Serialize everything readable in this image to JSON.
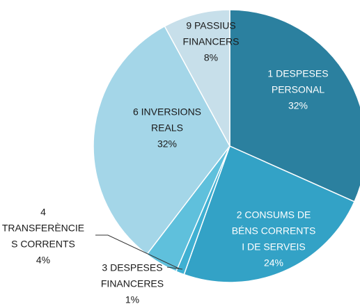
{
  "chart_data": {
    "type": "pie",
    "categories": [
      [
        "1  DESPESES",
        "PERSONAL"
      ],
      [
        "2  CONSUMS  DE",
        "BÉNS  CORRENTS",
        "I DE SERVEIS"
      ],
      [
        "3  DESPESES",
        "FINANCERES"
      ],
      [
        "4",
        "TRANSFERÈNCIE",
        "S CORRENTS"
      ],
      [
        "6  INVERSIONS",
        "REALS"
      ],
      [
        "9  PASSIUS",
        "FINANCERS"
      ]
    ],
    "values": [
      32,
      24,
      1,
      4,
      32,
      8
    ],
    "value_labels": [
      "32%",
      "24%",
      "1%",
      "4%",
      "32%",
      "8%"
    ],
    "colors": [
      "#2b809f",
      "#33a2c6",
      "#3fb0d2",
      "#5fc0dc",
      "#a4d6e8",
      "#c7dfea"
    ]
  }
}
